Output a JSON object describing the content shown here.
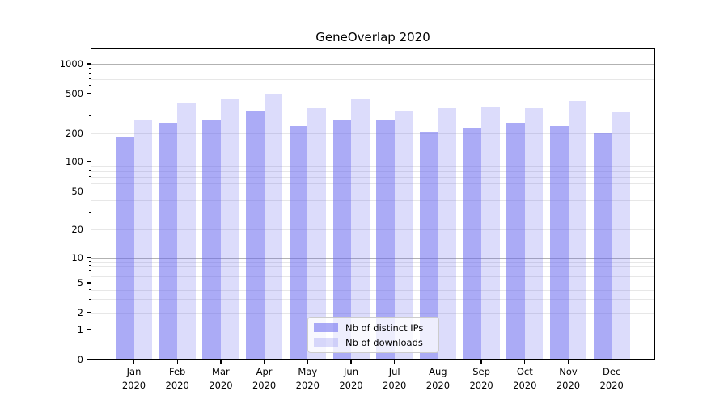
{
  "chart_data": {
    "type": "bar",
    "title": "GeneOverlap 2020",
    "year": "2020",
    "categories": [
      "Jan",
      "Feb",
      "Mar",
      "Apr",
      "May",
      "Jun",
      "Jul",
      "Aug",
      "Sep",
      "Oct",
      "Nov",
      "Dec"
    ],
    "series": [
      {
        "name": "Nb of distinct IPs",
        "key": "distinct-ips",
        "color": "rgba(102,102,238,0.55)",
        "values": [
          184,
          252,
          274,
          337,
          235,
          273,
          271,
          207,
          225,
          251,
          236,
          197
        ]
      },
      {
        "name": "Nb of downloads",
        "key": "downloads",
        "color": "rgba(102,102,238,0.23)",
        "values": [
          269,
          393,
          441,
          494,
          351,
          443,
          335,
          351,
          366,
          357,
          416,
          325
        ]
      }
    ],
    "xlabel": "",
    "ylabel": "",
    "yscale": "symlog",
    "ylim": [
      0,
      1400
    ],
    "yticks": [
      1000,
      500,
      200,
      100,
      50,
      20,
      10,
      5,
      2,
      1,
      0
    ],
    "minor_gridlines": [
      2,
      3,
      4,
      6,
      7,
      8,
      9,
      20,
      30,
      40,
      60,
      70,
      80,
      90,
      200,
      300,
      400,
      600,
      700,
      800,
      900
    ],
    "major_gridlines": [
      1,
      10,
      100,
      1000
    ],
    "grid": "both",
    "legend_position": "lower center inside axes"
  },
  "colors": {
    "bar_distinct_ips": "rgba(102,102,238,0.55)",
    "bar_downloads": "rgba(102,102,238,0.23)",
    "major_grid": "#b2b2b2",
    "minor_grid": "#e7e7e7",
    "axis": "#000000",
    "legend_border": "#cccccc"
  }
}
